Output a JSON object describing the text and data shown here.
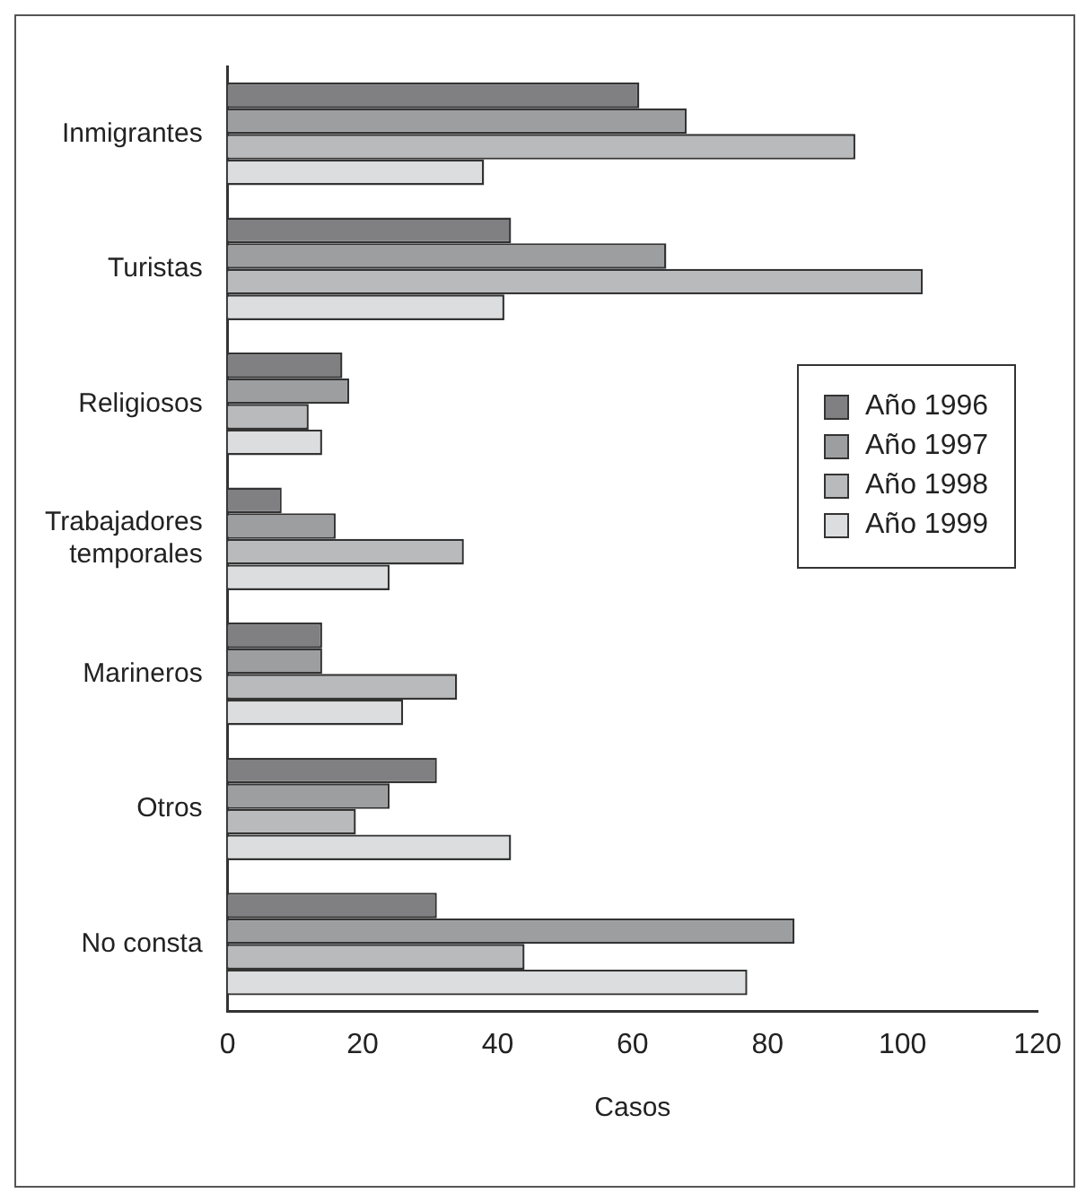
{
  "chart_data": {
    "type": "bar",
    "orientation": "horizontal",
    "xlabel": "Casos",
    "categories": [
      "Inmigrantes",
      "Turistas",
      "Religiosos",
      "Trabajadores temporales",
      "Marineros",
      "Otros",
      "No consta"
    ],
    "series": [
      {
        "name": "Año 1996",
        "color": "#808083",
        "values": [
          61,
          42,
          17,
          8,
          14,
          31,
          31
        ]
      },
      {
        "name": "Año 1997",
        "color": "#9d9ea0",
        "values": [
          68,
          65,
          18,
          16,
          14,
          24,
          84
        ]
      },
      {
        "name": "Año 1998",
        "color": "#b9babc",
        "values": [
          93,
          103,
          12,
          35,
          34,
          19,
          44
        ]
      },
      {
        "name": "Año 1999",
        "color": "#dcdddf",
        "values": [
          38,
          41,
          14,
          24,
          26,
          42,
          77
        ]
      }
    ],
    "xlim": [
      0,
      120
    ],
    "xticks": [
      0,
      20,
      40,
      60,
      80,
      100,
      120
    ],
    "grid": false,
    "legend": "right"
  }
}
